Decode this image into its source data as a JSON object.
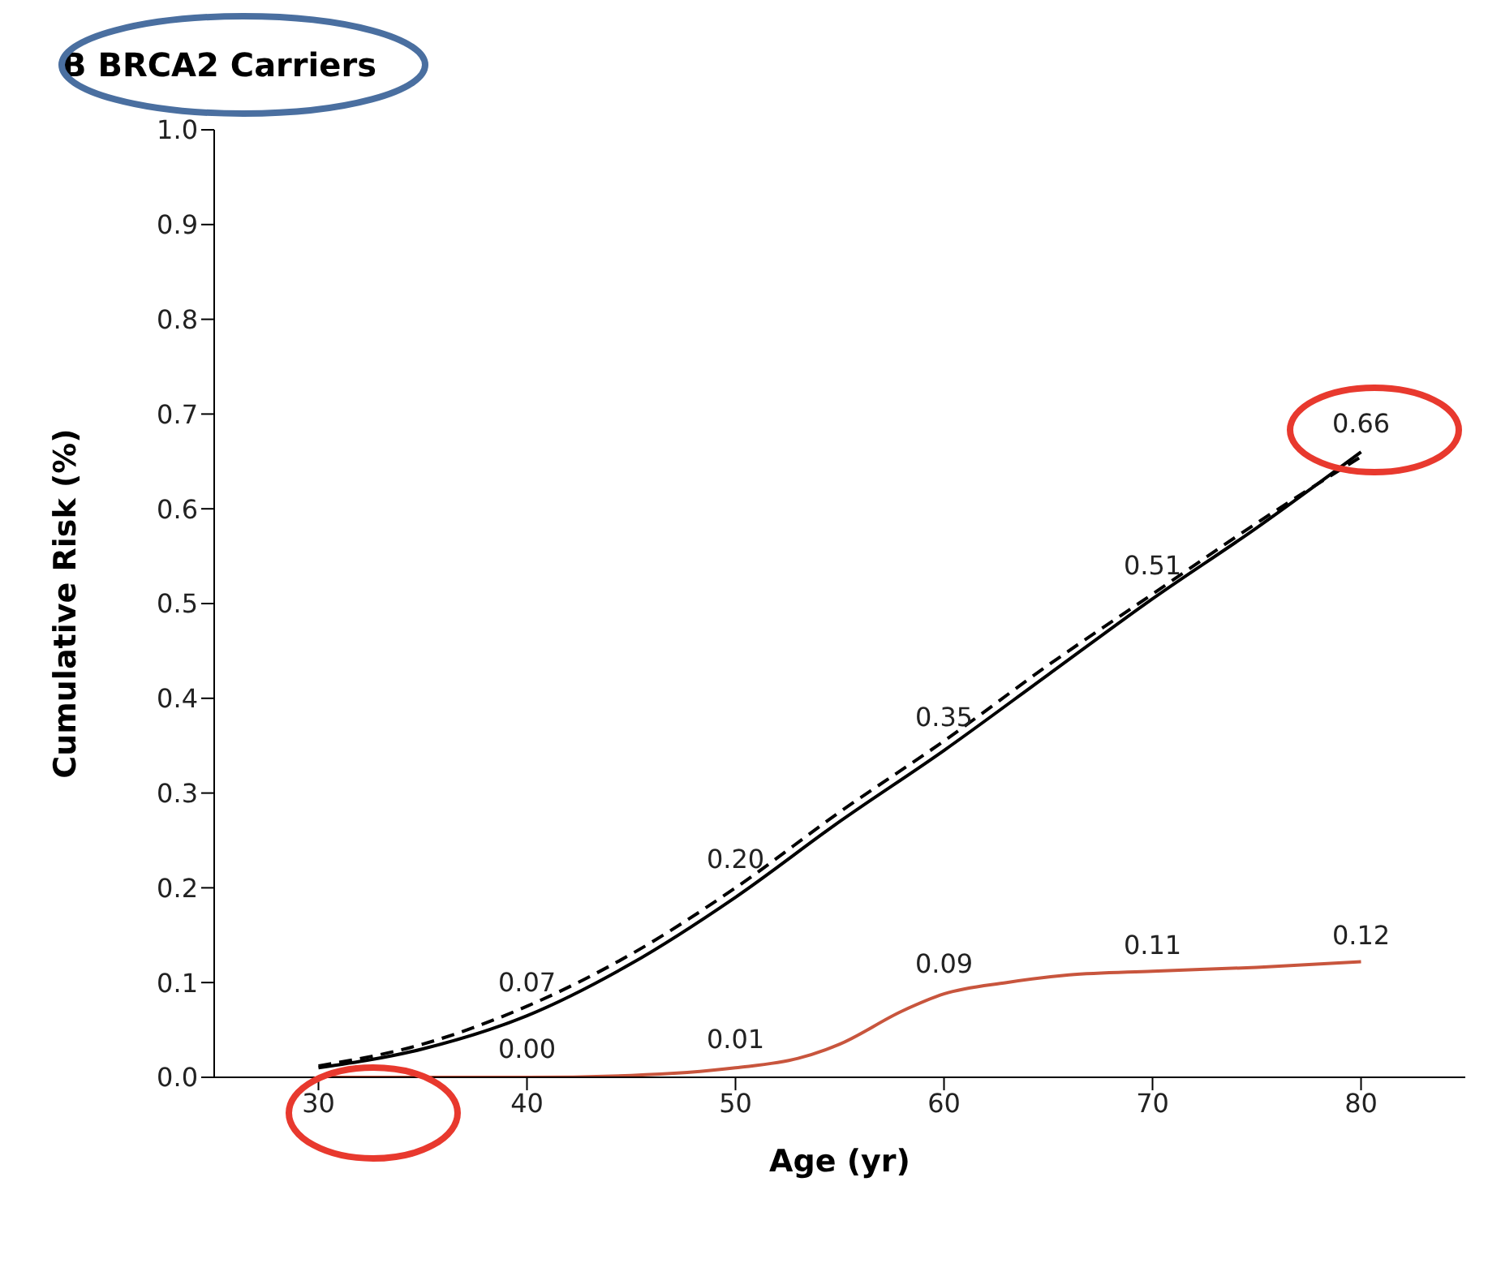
{
  "chart_data": {
    "type": "line",
    "title": "B BRCA2 Carriers",
    "xlabel": "Age (yr)",
    "ylabel": "Cumulative Risk (%)",
    "xlim": [
      25,
      85
    ],
    "xticks": [
      30,
      40,
      50,
      60,
      70,
      80
    ],
    "ylim": [
      0,
      1
    ],
    "yticks": [
      {
        "value": 0,
        "label": "0.0"
      },
      0.1,
      0.2,
      0.3,
      0.4,
      0.5,
      0.6,
      0.7,
      0.8,
      0.9,
      {
        "value": 1,
        "label": "1.0"
      }
    ],
    "grid": false,
    "marker": "none",
    "series": [
      {
        "color": "#000000",
        "line_style": "solid",
        "x": [
          30,
          35,
          40,
          45,
          50,
          55,
          60,
          65,
          70,
          75,
          80
        ],
        "values": [
          0.01,
          0.03,
          0.065,
          0.12,
          0.19,
          0.27,
          0.345,
          0.425,
          0.505,
          0.58,
          0.66
        ]
      },
      {
        "color": "#000000",
        "line_style": "dashed",
        "x": [
          30,
          35,
          40,
          45,
          50,
          55,
          60,
          65,
          70,
          75,
          80
        ],
        "values": [
          0.012,
          0.035,
          0.075,
          0.13,
          0.2,
          0.28,
          0.355,
          0.435,
          0.51,
          0.585,
          0.655
        ]
      },
      {
        "color": "#c8553d",
        "line_style": "solid",
        "x": [
          30,
          40,
          45,
          50,
          53,
          55,
          58,
          60,
          63,
          66,
          70,
          75,
          80
        ],
        "values": [
          0,
          0,
          0.002,
          0.01,
          0.02,
          0.035,
          0.07,
          0.088,
          0.1,
          0.108,
          0.112,
          0.116,
          0.122
        ]
      }
    ],
    "annotations": [
      {
        "text": "0.07",
        "x": 40,
        "y": 0.07
      },
      {
        "text": "0.20",
        "x": 50,
        "y": 0.2
      },
      {
        "text": "0.35",
        "x": 60,
        "y": 0.35
      },
      {
        "text": "0.51",
        "x": 70,
        "y": 0.51
      },
      {
        "text": "0.66",
        "x": 80,
        "y": 0.66
      },
      {
        "text": "0.00",
        "x": 40,
        "y": 0
      },
      {
        "text": "0.01",
        "x": 50,
        "y": 0.01
      },
      {
        "text": "0.09",
        "x": 60,
        "y": 0.09
      },
      {
        "text": "0.11",
        "x": 70,
        "y": 0.11
      },
      {
        "text": "0.12",
        "x": 80,
        "y": 0.12
      }
    ]
  }
}
